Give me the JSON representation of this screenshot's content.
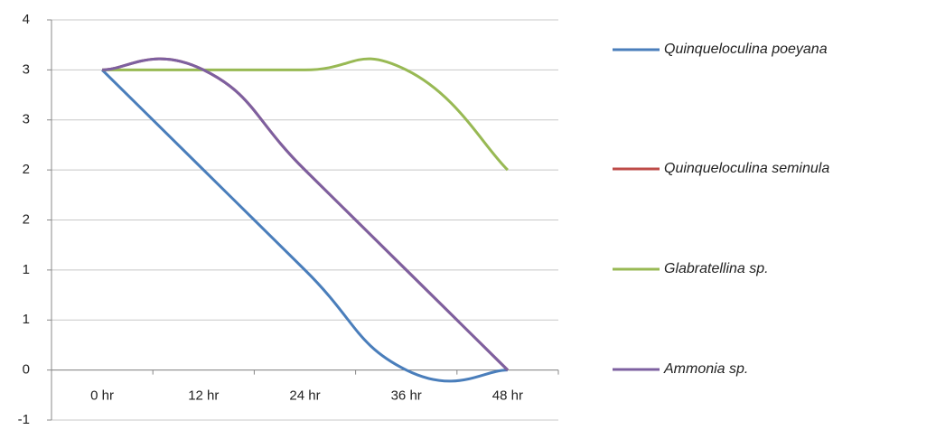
{
  "chart_data": {
    "type": "line",
    "categories": [
      "0 hr",
      "12 hr",
      "24 hr",
      "36 hr",
      "48 hr"
    ],
    "series": [
      {
        "name": "Quinqueloculina poeyana",
        "color": "#4a7ebb",
        "values": [
          3,
          2,
          1,
          0,
          0
        ]
      },
      {
        "name": "Quinqueloculina seminula",
        "color": "#be4b48",
        "values": [
          3,
          3,
          2,
          1,
          0
        ]
      },
      {
        "name": "Glabratellina sp.",
        "color": "#98b954",
        "values": [
          3,
          3,
          3,
          3,
          2
        ]
      },
      {
        "name": "Ammonia sp.",
        "color": "#7d60a0",
        "values": [
          3,
          3,
          2,
          1,
          0
        ]
      }
    ],
    "ylim": [
      -0.5,
      3.5
    ],
    "yticks": [
      {
        "value": -0.5,
        "label": "-1"
      },
      0,
      {
        "value": 0.5,
        "label": "1"
      },
      1,
      {
        "value": 1.5,
        "label": "2"
      },
      2,
      {
        "value": 2.5,
        "label": "3"
      },
      3,
      {
        "value": 3.5,
        "label": "4"
      }
    ],
    "grid": true,
    "legend": "right"
  }
}
